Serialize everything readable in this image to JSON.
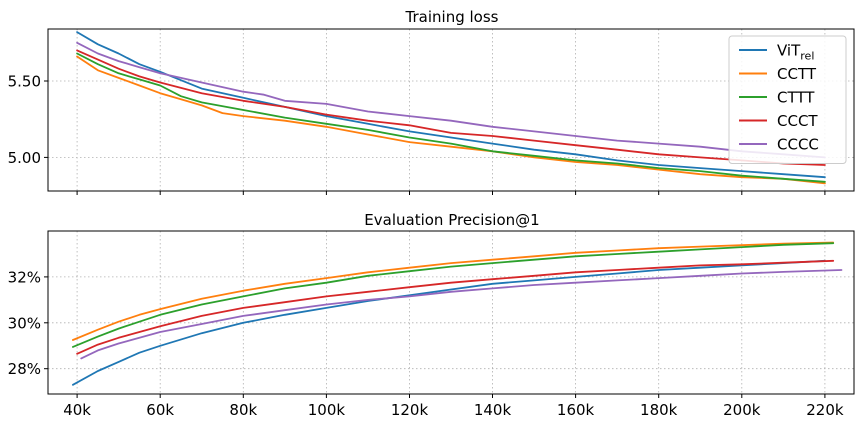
{
  "chart_data": [
    {
      "type": "line",
      "title": "Training loss",
      "xlabel": "",
      "ylabel": "",
      "xlim": [
        33000,
        227000
      ],
      "ylim": [
        4.78,
        5.84
      ],
      "x_ticks": [
        40000,
        60000,
        80000,
        100000,
        120000,
        140000,
        160000,
        180000,
        200000,
        220000
      ],
      "y_ticks": [
        5.0,
        5.5
      ],
      "y_tick_labels": [
        "5.00",
        "5.50"
      ],
      "grid": true,
      "legend": "top-right",
      "series": [
        {
          "name": "ViT",
          "name_subscript": "rel",
          "color": "#1f77b4",
          "x": [
            40000,
            45000,
            50000,
            55000,
            60000,
            70000,
            80000,
            90000,
            100000,
            110000,
            120000,
            130000,
            140000,
            150000,
            160000,
            170000,
            180000,
            190000,
            200000,
            210000,
            220000
          ],
          "y": [
            5.82,
            5.74,
            5.68,
            5.61,
            5.56,
            5.45,
            5.39,
            5.33,
            5.27,
            5.22,
            5.17,
            5.13,
            5.09,
            5.05,
            5.02,
            4.98,
            4.95,
            4.93,
            4.91,
            4.89,
            4.87
          ]
        },
        {
          "name": "CCTT",
          "color": "#ff7f0e",
          "x": [
            40000,
            45000,
            50000,
            55000,
            60000,
            65000,
            70000,
            75000,
            80000,
            90000,
            100000,
            110000,
            120000,
            130000,
            140000,
            150000,
            160000,
            170000,
            180000,
            190000,
            200000,
            210000,
            220000
          ],
          "y": [
            5.66,
            5.57,
            5.52,
            5.47,
            5.42,
            5.38,
            5.34,
            5.29,
            5.27,
            5.24,
            5.2,
            5.15,
            5.1,
            5.07,
            5.04,
            5.0,
            4.97,
            4.95,
            4.92,
            4.89,
            4.87,
            4.86,
            4.83
          ]
        },
        {
          "name": "CTTT",
          "color": "#2ca02c",
          "x": [
            40000,
            45000,
            50000,
            55000,
            60000,
            65000,
            70000,
            80000,
            90000,
            100000,
            110000,
            120000,
            130000,
            140000,
            150000,
            160000,
            170000,
            180000,
            190000,
            200000,
            210000,
            220000
          ],
          "y": [
            5.68,
            5.61,
            5.55,
            5.51,
            5.47,
            5.4,
            5.36,
            5.31,
            5.26,
            5.22,
            5.18,
            5.13,
            5.09,
            5.04,
            5.01,
            4.98,
            4.96,
            4.93,
            4.91,
            4.88,
            4.86,
            4.84
          ]
        },
        {
          "name": "CCCT",
          "color": "#d62728",
          "x": [
            40000,
            45000,
            50000,
            55000,
            60000,
            70000,
            80000,
            90000,
            100000,
            110000,
            120000,
            130000,
            140000,
            150000,
            160000,
            170000,
            180000,
            190000,
            200000,
            210000,
            220000
          ],
          "y": [
            5.7,
            5.64,
            5.58,
            5.53,
            5.49,
            5.42,
            5.37,
            5.33,
            5.28,
            5.24,
            5.21,
            5.16,
            5.14,
            5.11,
            5.08,
            5.05,
            5.02,
            5.0,
            4.98,
            4.96,
            4.95
          ]
        },
        {
          "name": "CCCC",
          "color": "#9467bd",
          "x": [
            40000,
            45000,
            50000,
            55000,
            60000,
            70000,
            80000,
            85000,
            90000,
            100000,
            110000,
            120000,
            130000,
            140000,
            150000,
            160000,
            170000,
            180000,
            190000,
            200000,
            210000,
            220000
          ],
          "y": [
            5.75,
            5.68,
            5.63,
            5.59,
            5.55,
            5.49,
            5.43,
            5.41,
            5.37,
            5.35,
            5.3,
            5.27,
            5.24,
            5.2,
            5.17,
            5.14,
            5.11,
            5.09,
            5.07,
            5.04,
            5.02,
            5.0
          ]
        }
      ]
    },
    {
      "type": "line",
      "title": "Evaluation Precision@1",
      "xlabel": "",
      "ylabel": "",
      "xlim": [
        33000,
        227000
      ],
      "ylim": [
        26.9,
        34.0
      ],
      "x_ticks": [
        40000,
        60000,
        80000,
        100000,
        120000,
        140000,
        160000,
        180000,
        200000,
        220000
      ],
      "x_tick_labels": [
        "40k",
        "60k",
        "80k",
        "100k",
        "120k",
        "140k",
        "160k",
        "180k",
        "200k",
        "220k"
      ],
      "y_ticks": [
        28,
        30,
        32
      ],
      "y_tick_labels": [
        "28%",
        "30%",
        "32%"
      ],
      "grid": true,
      "series": [
        {
          "name": "ViT",
          "name_subscript": "rel",
          "color": "#1f77b4",
          "x": [
            39000,
            45000,
            50000,
            55000,
            60000,
            70000,
            80000,
            90000,
            100000,
            110000,
            120000,
            130000,
            140000,
            150000,
            160000,
            170000,
            180000,
            190000,
            200000,
            210000,
            220000
          ],
          "y": [
            27.3,
            27.9,
            28.3,
            28.7,
            29.0,
            29.55,
            30.0,
            30.35,
            30.65,
            30.95,
            31.2,
            31.45,
            31.7,
            31.85,
            32.0,
            32.15,
            32.3,
            32.4,
            32.5,
            32.6,
            32.7
          ]
        },
        {
          "name": "CCTT",
          "color": "#ff7f0e",
          "x": [
            39000,
            45000,
            50000,
            55000,
            60000,
            70000,
            80000,
            90000,
            100000,
            110000,
            120000,
            130000,
            140000,
            150000,
            160000,
            170000,
            180000,
            190000,
            200000,
            210000,
            222000
          ],
          "y": [
            29.25,
            29.7,
            30.05,
            30.35,
            30.6,
            31.05,
            31.4,
            31.7,
            31.95,
            32.2,
            32.4,
            32.6,
            32.75,
            32.9,
            33.05,
            33.15,
            33.25,
            33.32,
            33.38,
            33.45,
            33.5
          ]
        },
        {
          "name": "CTTT",
          "color": "#2ca02c",
          "x": [
            39000,
            45000,
            50000,
            55000,
            60000,
            70000,
            80000,
            90000,
            100000,
            110000,
            120000,
            130000,
            140000,
            150000,
            160000,
            170000,
            180000,
            190000,
            200000,
            210000,
            222000
          ],
          "y": [
            28.95,
            29.4,
            29.75,
            30.05,
            30.35,
            30.8,
            31.15,
            31.5,
            31.75,
            32.05,
            32.25,
            32.45,
            32.6,
            32.75,
            32.9,
            33.0,
            33.1,
            33.2,
            33.3,
            33.4,
            33.47
          ]
        },
        {
          "name": "CCCT",
          "color": "#d62728",
          "x": [
            40000,
            45000,
            50000,
            55000,
            60000,
            70000,
            80000,
            90000,
            100000,
            110000,
            120000,
            130000,
            140000,
            150000,
            160000,
            170000,
            180000,
            190000,
            200000,
            210000,
            222000
          ],
          "y": [
            28.65,
            29.05,
            29.35,
            29.6,
            29.85,
            30.3,
            30.65,
            30.9,
            31.15,
            31.35,
            31.55,
            31.75,
            31.9,
            32.05,
            32.2,
            32.3,
            32.4,
            32.5,
            32.55,
            32.62,
            32.7
          ]
        },
        {
          "name": "CCCC",
          "color": "#9467bd",
          "x": [
            41000,
            45000,
            50000,
            55000,
            60000,
            70000,
            80000,
            90000,
            100000,
            110000,
            120000,
            130000,
            140000,
            150000,
            160000,
            170000,
            180000,
            190000,
            200000,
            210000,
            224000
          ],
          "y": [
            28.45,
            28.8,
            29.1,
            29.35,
            29.6,
            29.95,
            30.3,
            30.55,
            30.8,
            31.0,
            31.15,
            31.35,
            31.5,
            31.65,
            31.75,
            31.85,
            31.95,
            32.05,
            32.15,
            32.22,
            32.3
          ]
        }
      ]
    }
  ]
}
